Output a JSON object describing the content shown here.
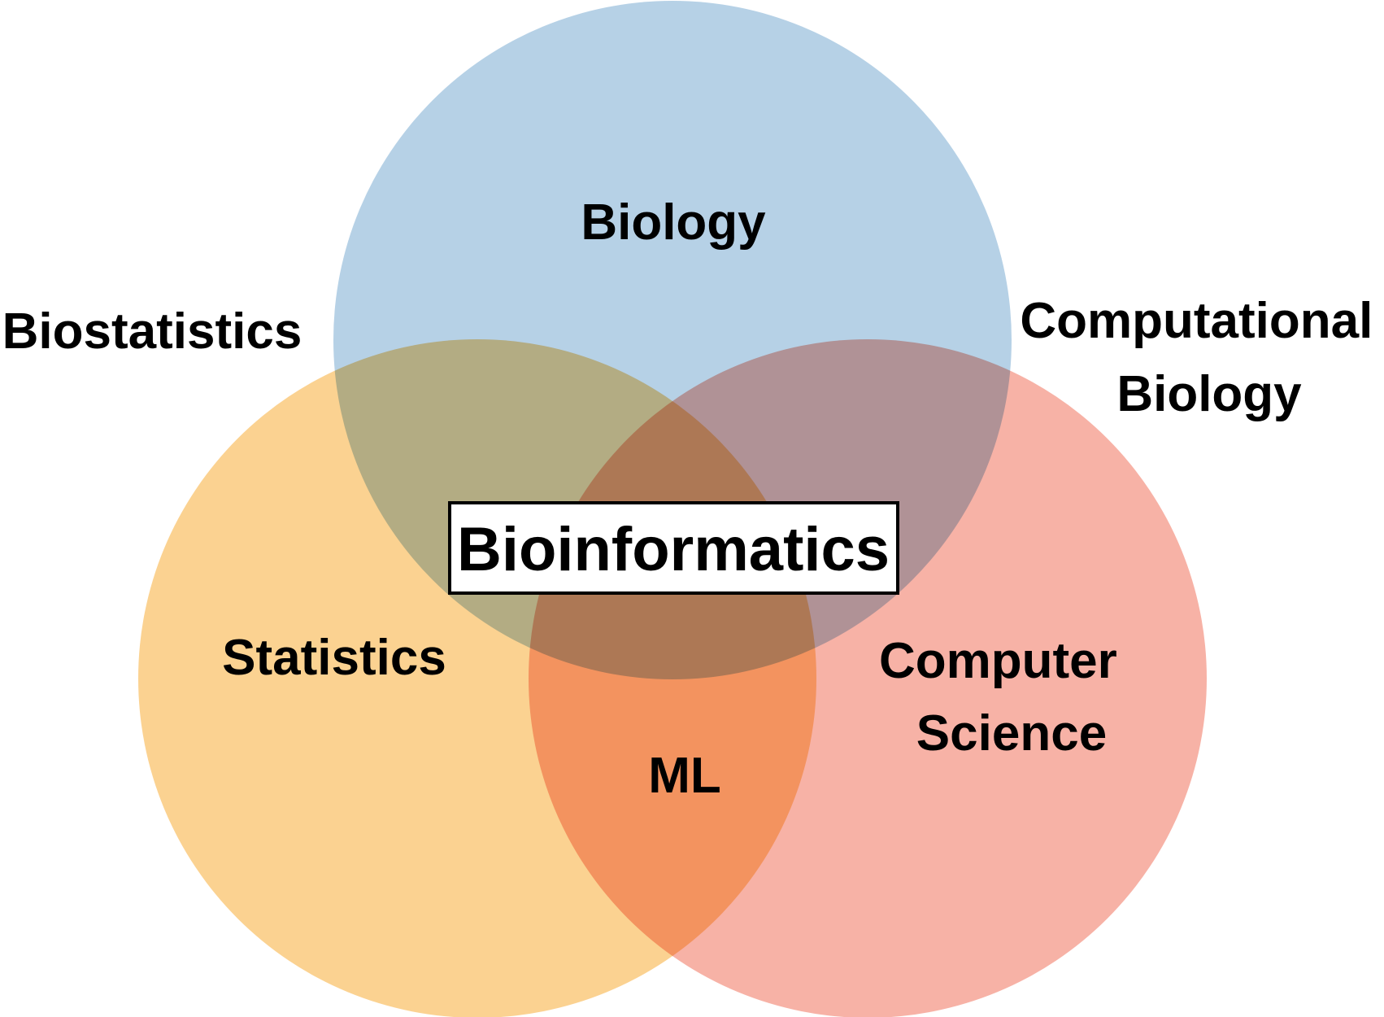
{
  "diagram": {
    "type": "venn",
    "sets": [
      {
        "id": "biology",
        "label": "Biology",
        "color": "#8fb8d9"
      },
      {
        "id": "statistics",
        "label": "Statistics",
        "color": "#f8b74d"
      },
      {
        "id": "computer_science",
        "label": "Computer Science",
        "label_lines": [
          "Computer",
          "Science"
        ],
        "color": "#f28876"
      }
    ],
    "intersections": [
      {
        "sets": [
          "statistics",
          "biology"
        ],
        "label": "Biostatistics"
      },
      {
        "sets": [
          "biology",
          "computer_science"
        ],
        "label": "Computational Biology",
        "label_lines": [
          "Computational",
          "Biology"
        ]
      },
      {
        "sets": [
          "statistics",
          "computer_science"
        ],
        "label": "ML"
      },
      {
        "sets": [
          "biology",
          "statistics",
          "computer_science"
        ],
        "label": "Bioinformatics",
        "boxed": true
      }
    ],
    "background_color": "#ffffff",
    "center_box_fill": "#ffffff",
    "center_box_border": "#000000"
  }
}
